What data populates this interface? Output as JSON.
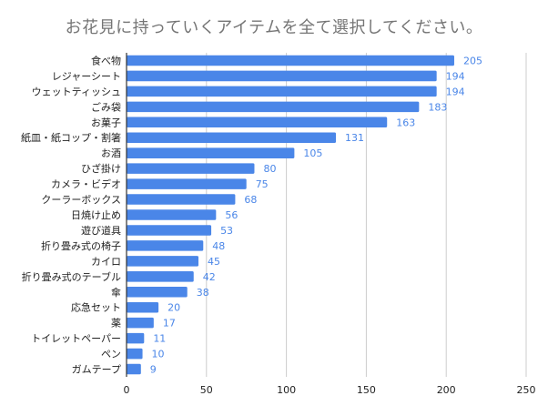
{
  "chart_data": {
    "type": "bar",
    "orientation": "horizontal",
    "title": "お花見に持っていくアイテムを全て選択してください。",
    "xlabel": "",
    "ylabel": "",
    "xlim": [
      0,
      250
    ],
    "xticks": [
      0,
      50,
      100,
      150,
      200,
      250
    ],
    "grid": true,
    "categories": [
      "食べ物",
      "レジャーシート",
      "ウェットティッシュ",
      "ごみ袋",
      "お菓子",
      "紙皿・紙コップ・割箸",
      "お酒",
      "ひざ掛け",
      "カメラ・ビデオ",
      "クーラーボックス",
      "日焼け止め",
      "遊び道具",
      "折り畳み式の椅子",
      "カイロ",
      "折り畳み式のテーブル",
      "傘",
      "応急セット",
      "薬",
      "トイレットペーパー",
      "ペン",
      "ガムテープ"
    ],
    "values": [
      205,
      194,
      194,
      183,
      163,
      131,
      105,
      80,
      75,
      68,
      56,
      53,
      48,
      45,
      42,
      38,
      20,
      17,
      11,
      10,
      9
    ],
    "bar_color": "#4a86e8",
    "label_color": "#4a86e8",
    "grid_color": "#cccccc",
    "axis_color": "#333333"
  }
}
